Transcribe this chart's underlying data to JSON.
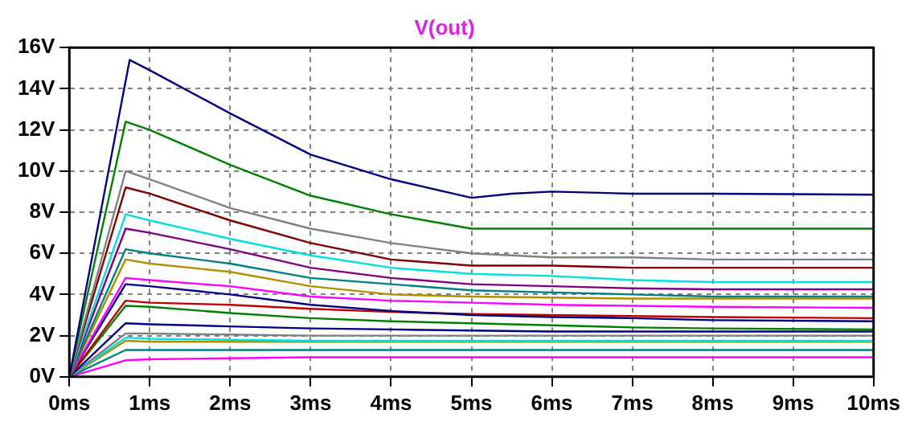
{
  "chart_data": {
    "type": "line",
    "title": "V(out)",
    "xlim": [
      0,
      10
    ],
    "ylim": [
      0,
      16
    ],
    "xticks": [
      {
        "value": 0,
        "label": "0ms"
      },
      {
        "value": 1,
        "label": "1ms"
      },
      {
        "value": 2,
        "label": "2ms"
      },
      {
        "value": 3,
        "label": "3ms"
      },
      {
        "value": 4,
        "label": "4ms"
      },
      {
        "value": 5,
        "label": "5ms"
      },
      {
        "value": 6,
        "label": "6ms"
      },
      {
        "value": 7,
        "label": "7ms"
      },
      {
        "value": 8,
        "label": "8ms"
      },
      {
        "value": 9,
        "label": "9ms"
      },
      {
        "value": 10,
        "label": "10ms"
      }
    ],
    "yticks": [
      {
        "value": 0,
        "label": "0V"
      },
      {
        "value": 2,
        "label": "2V"
      },
      {
        "value": 4,
        "label": "4V"
      },
      {
        "value": 6,
        "label": "6V"
      },
      {
        "value": 8,
        "label": "8V"
      },
      {
        "value": 10,
        "label": "10V"
      },
      {
        "value": 12,
        "label": "12V"
      },
      {
        "value": 14,
        "label": "14V"
      },
      {
        "value": 16,
        "label": "16V"
      }
    ],
    "grid": true,
    "legend": false,
    "marker": "none",
    "x": [
      0,
      0.7,
      1,
      2,
      3,
      4,
      5,
      6,
      7,
      8,
      10
    ],
    "series": [
      {
        "color": "#000080",
        "x": [
          0,
          0.75,
          1,
          2,
          3,
          4,
          5,
          5.5,
          6,
          7,
          8,
          10
        ],
        "values": [
          0,
          15.4,
          14.9,
          12.8,
          10.8,
          9.6,
          8.7,
          8.9,
          9.0,
          8.9,
          8.9,
          8.85
        ]
      },
      {
        "color": "#008000",
        "values": [
          0,
          12.4,
          12.0,
          10.3,
          8.8,
          7.9,
          7.2,
          7.2,
          7.2,
          7.2,
          7.2
        ]
      },
      {
        "color": "#808080",
        "values": [
          0,
          10.0,
          9.6,
          8.2,
          7.2,
          6.5,
          6.0,
          5.8,
          5.8,
          5.7,
          5.7
        ]
      },
      {
        "color": "#800000",
        "values": [
          0,
          9.2,
          8.9,
          7.6,
          6.5,
          5.7,
          5.4,
          5.4,
          5.3,
          5.3,
          5.3
        ]
      },
      {
        "color": "#00e0e0",
        "values": [
          0,
          7.9,
          7.6,
          6.7,
          5.9,
          5.3,
          5.0,
          4.9,
          4.7,
          4.6,
          4.6
        ]
      },
      {
        "color": "#800080",
        "values": [
          0,
          7.2,
          7.0,
          6.2,
          5.3,
          4.8,
          4.5,
          4.4,
          4.3,
          4.25,
          4.25
        ]
      },
      {
        "color": "#008080",
        "values": [
          0,
          6.2,
          6.0,
          5.5,
          4.8,
          4.5,
          4.2,
          4.1,
          4.0,
          3.9,
          3.9
        ]
      },
      {
        "color": "#b09000",
        "values": [
          0,
          5.7,
          5.5,
          5.1,
          4.4,
          4.0,
          3.9,
          3.85,
          3.8,
          3.8,
          3.8
        ]
      },
      {
        "color": "#ff00ff",
        "values": [
          0,
          4.8,
          4.7,
          4.4,
          3.9,
          3.7,
          3.6,
          3.5,
          3.45,
          3.4,
          3.35
        ]
      },
      {
        "color": "#000080",
        "values": [
          0,
          4.5,
          4.4,
          4.0,
          3.5,
          3.2,
          3.0,
          2.9,
          2.85,
          2.75,
          2.7
        ]
      },
      {
        "color": "#c00000",
        "values": [
          0,
          3.7,
          3.6,
          3.5,
          3.3,
          3.15,
          3.05,
          3.0,
          2.95,
          2.9,
          2.85
        ]
      },
      {
        "color": "#008000",
        "values": [
          0,
          3.45,
          3.4,
          3.1,
          2.85,
          2.7,
          2.6,
          2.5,
          2.4,
          2.35,
          2.3
        ]
      },
      {
        "color": "#000080",
        "values": [
          0,
          2.6,
          2.55,
          2.45,
          2.35,
          2.3,
          2.25,
          2.2,
          2.2,
          2.2,
          2.2
        ]
      },
      {
        "color": "#808080",
        "values": [
          0,
          2.1,
          2.1,
          2.05,
          2.0,
          2.0,
          2.0,
          2.0,
          2.0,
          2.0,
          2.0
        ]
      },
      {
        "color": "#00e0e0",
        "values": [
          0,
          1.9,
          1.85,
          1.8,
          1.75,
          1.75,
          1.75,
          1.75,
          1.75,
          1.75,
          1.75
        ]
      },
      {
        "color": "#b09000",
        "values": [
          0,
          1.75,
          1.7,
          1.7,
          1.7,
          1.7,
          1.7,
          1.7,
          1.7,
          1.7,
          1.7
        ]
      },
      {
        "color": "#008080",
        "values": [
          0,
          1.3,
          1.3,
          1.3,
          1.3,
          1.3,
          1.3,
          1.3,
          1.3,
          1.3,
          1.3
        ]
      },
      {
        "color": "#ff00ff",
        "values": [
          0,
          0.8,
          0.85,
          0.9,
          0.95,
          0.95,
          0.95,
          0.95,
          0.95,
          0.95,
          0.95
        ]
      }
    ]
  }
}
